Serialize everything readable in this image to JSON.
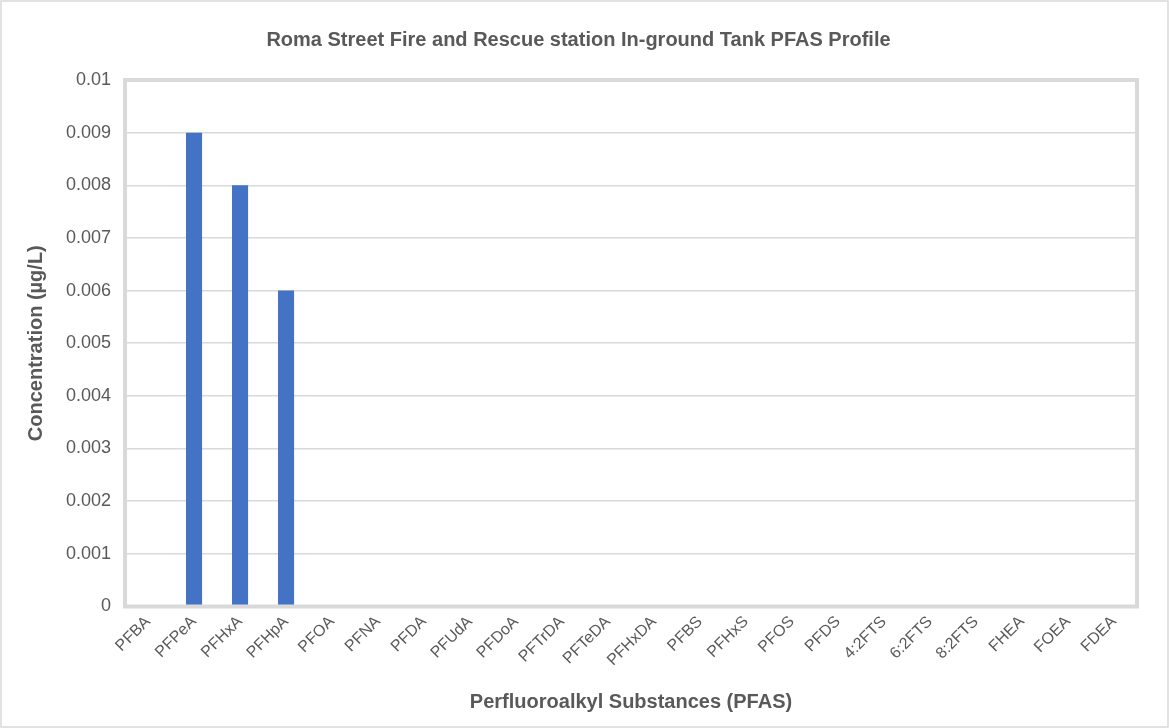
{
  "chart_data": {
    "type": "bar",
    "title": "Roma Street Fire and Rescue station In-ground Tank PFAS Profile",
    "xlabel": "Perfluoroalkyl Substances (PFAS)",
    "ylabel": "Concentration (µg/L)",
    "categories": [
      "PFBA",
      "PFPeA",
      "PFHxA",
      "PFHpA",
      "PFOA",
      "PFNA",
      "PFDA",
      "PFUdA",
      "PFDoA",
      "PFTrDA",
      "PFTeDA",
      "PFHxDA",
      "PFBS",
      "PFHxS",
      "PFOS",
      "PFDS",
      "4:2FTS",
      "6:2FTS",
      "8:2FTS",
      "FHEA",
      "FOEA",
      "FDEA"
    ],
    "values": [
      0,
      0.009,
      0.008,
      0.006,
      0,
      0,
      0,
      0,
      0,
      0,
      0,
      0,
      0,
      0,
      0,
      0,
      0,
      0,
      0,
      0,
      0,
      0
    ],
    "color": "#4472c4",
    "ylim": [
      0,
      0.01
    ],
    "yticks": [
      0,
      0.001,
      0.002,
      0.003,
      0.004,
      0.005,
      0.006,
      0.007,
      0.008,
      0.009,
      0.01
    ],
    "grid": "y",
    "legend": false
  }
}
